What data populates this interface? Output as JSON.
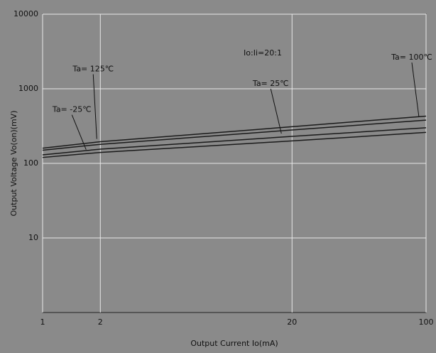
{
  "chart_data": {
    "type": "line",
    "annotation": "Io:Ii=20:1",
    "x_label": "Output Current   Io(mA)",
    "y_label": "Output Voltage   Vo(on)(mV)",
    "x": [
      1,
      2,
      20,
      100
    ],
    "series": [
      {
        "name": "Ta= -25℃",
        "color": "#1a1a1a",
        "values": [
          120,
          140,
          200,
          260
        ]
      },
      {
        "name": "Ta= 25℃",
        "color": "#1a1a1a",
        "values": [
          130,
          155,
          230,
          300
        ]
      },
      {
        "name": "Ta= 100℃",
        "color": "#1a1a1a",
        "values": [
          150,
          180,
          280,
          380
        ]
      },
      {
        "name": "Ta= 125℃",
        "color": "#1a1a1a",
        "values": [
          160,
          195,
          310,
          430
        ]
      }
    ],
    "xlim": [
      1,
      100
    ],
    "xticks": [
      1,
      2,
      20,
      100
    ],
    "ylim": [
      1,
      10000
    ],
    "yticks": [
      10,
      100,
      1000,
      10000
    ],
    "log_x": true,
    "log_y": true,
    "grid": true
  }
}
